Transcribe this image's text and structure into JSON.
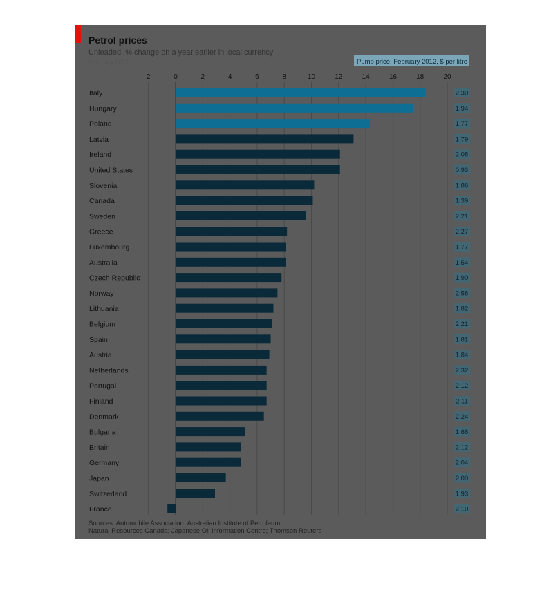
{
  "chart_data": {
    "type": "bar",
    "title": "Petrol prices",
    "subtitle": "Unleaded, % change on a year earlier in local currency",
    "date_label": "February 2012",
    "price_header": "Pump price, February 2012, $ per litre",
    "x_ticks": [
      "2",
      "0",
      "2",
      "4",
      "6",
      "8",
      "10",
      "12",
      "14",
      "16",
      "18",
      "20"
    ],
    "xlim": [
      -4,
      20
    ],
    "categories": [
      "Italy",
      "Hungary",
      "Poland",
      "Latvia",
      "Ireland",
      "United States",
      "Slovenia",
      "Canada",
      "Sweden",
      "Greece",
      "Luxembourg",
      "Australia",
      "Czech Republic",
      "Norway",
      "Lithuania",
      "Belgium",
      "Spain",
      "Austria",
      "Netherlands",
      "Portugal",
      "Finland",
      "Denmark",
      "Bulgaria",
      "Britain",
      "Germany",
      "Japan",
      "Switzerland",
      "France"
    ],
    "values": [
      18.4,
      17.5,
      14.3,
      13.1,
      12.1,
      12.1,
      10.2,
      10.1,
      9.6,
      8.2,
      8.1,
      8.1,
      7.8,
      7.5,
      7.2,
      7.1,
      7.0,
      6.9,
      6.7,
      6.7,
      6.7,
      6.5,
      5.1,
      4.8,
      4.8,
      3.7,
      2.9,
      -0.6
    ],
    "prices": [
      "2.30",
      "1.94",
      "1.77",
      "1.79",
      "2.08",
      "0.93",
      "1.86",
      "1.39",
      "2.21",
      "2.27",
      "1.77",
      "1.54",
      "1.90",
      "2.58",
      "1.82",
      "2.21",
      "1.81",
      "1.84",
      "2.32",
      "2.12",
      "2.11",
      "2.24",
      "1.68",
      "2.12",
      "2.04",
      "2.00",
      "1.93",
      "2.10"
    ],
    "source": [
      "Sources: Automobile Association; Australian Institute of Petroleum;",
      "Natural Resources Canada; Japanese Oil Information Centre; Thomson Reuters"
    ],
    "colors": {
      "bar": "#0a2a3a",
      "bar_highlight": "#0e6e93",
      "background": "#5b5b5b",
      "accent": "#e3120b",
      "price_box": "#2f6f86"
    }
  }
}
